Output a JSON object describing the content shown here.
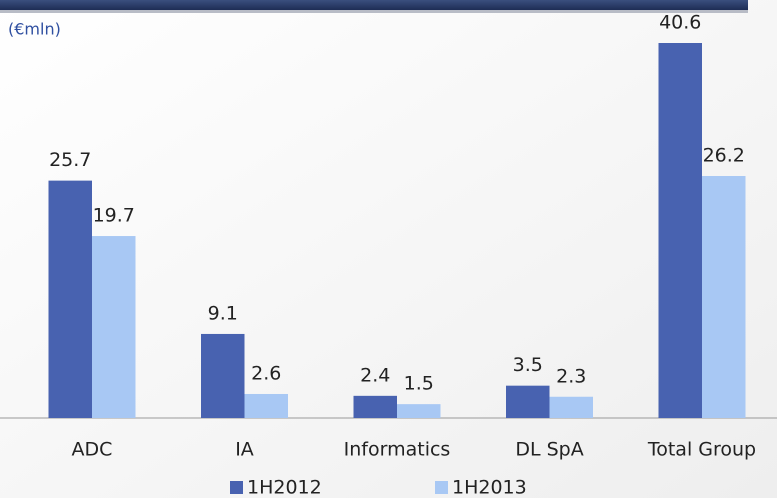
{
  "chart_data": {
    "type": "bar",
    "unit_label": "(€mln)",
    "categories": [
      "ADC",
      "IA",
      "Informatics",
      "DL SpA",
      "Total Group"
    ],
    "series": [
      {
        "name": "1H2012",
        "color": "#4862b0",
        "values": [
          25.7,
          9.1,
          2.4,
          3.5,
          40.6
        ]
      },
      {
        "name": "1H2013",
        "color": "#a8c8f4",
        "values": [
          19.7,
          2.6,
          1.5,
          2.3,
          26.2
        ]
      }
    ]
  }
}
